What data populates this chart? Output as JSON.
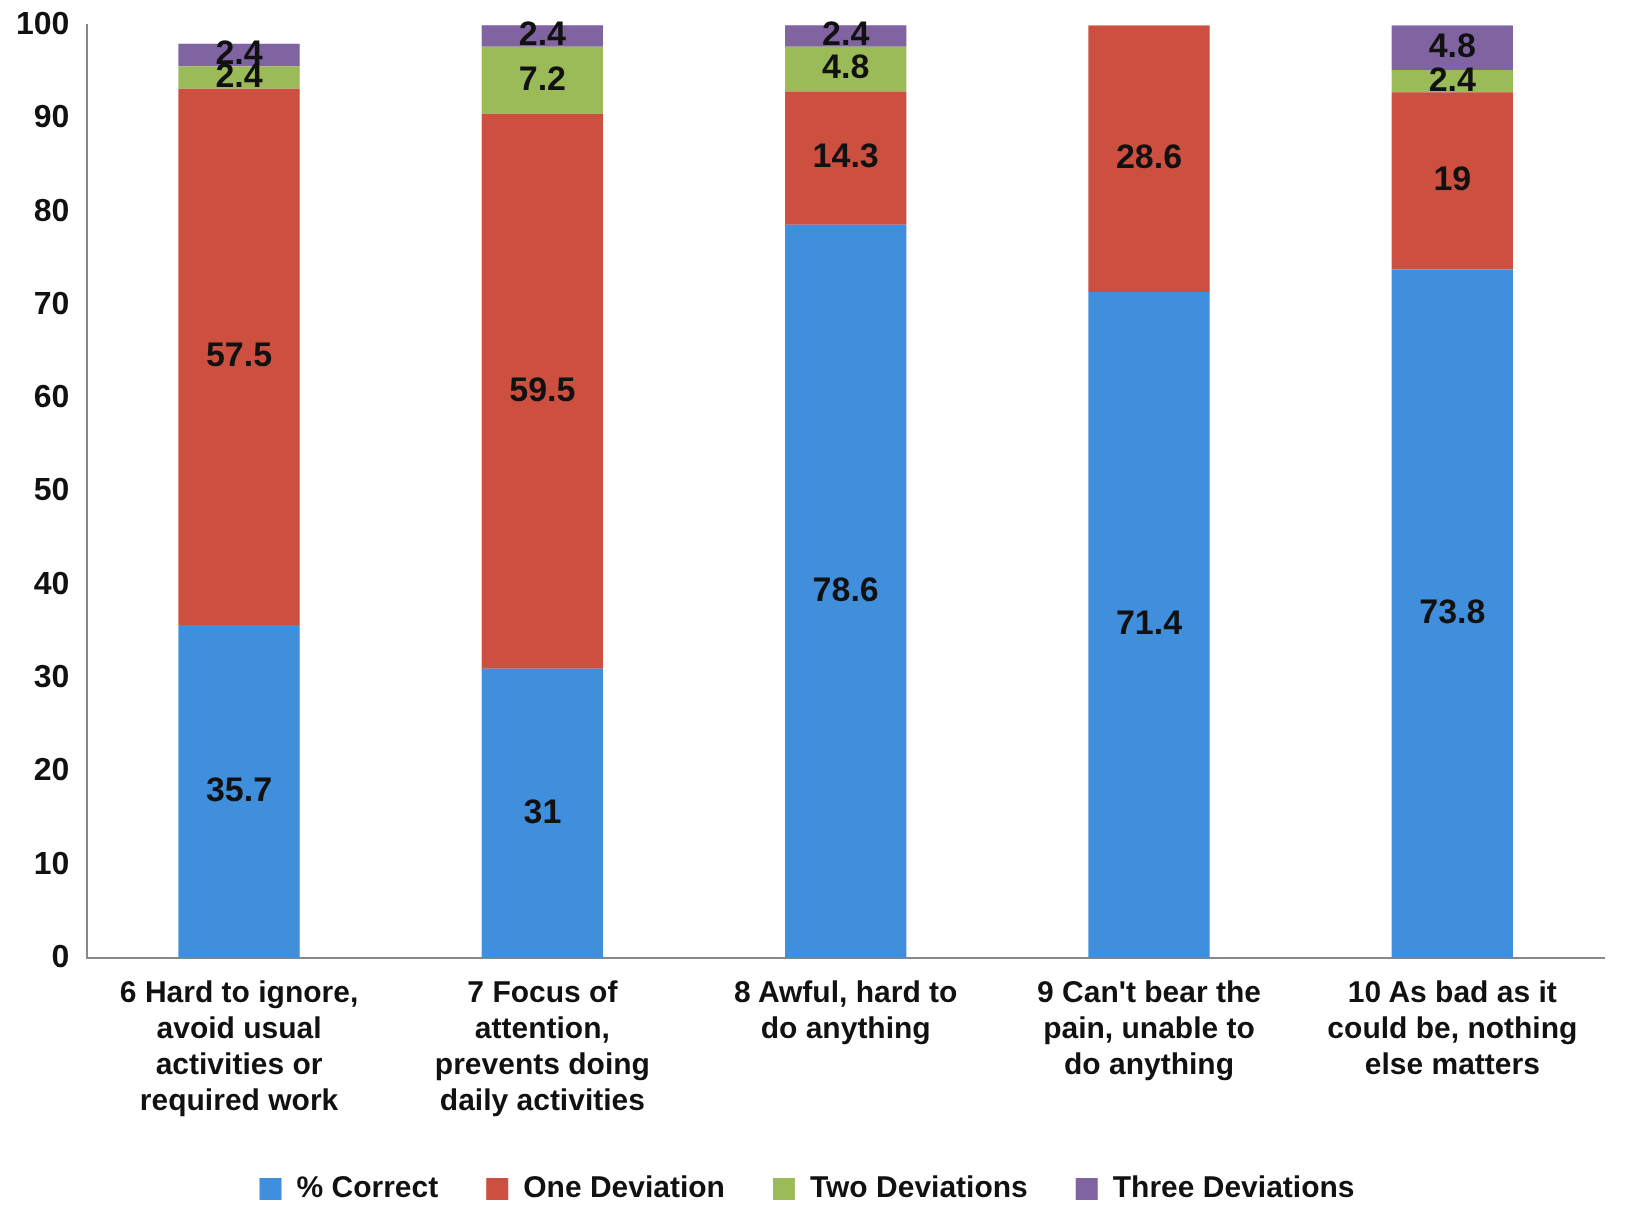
{
  "chart_data": {
    "type": "bar",
    "stacked": true,
    "categories": [
      "6 Hard to ignore, avoid usual activities or required work",
      "7 Focus of attention, prevents doing daily activities",
      "8 Awful, hard to do anything",
      "9 Can't bear the pain, unable to do anything",
      "10 As bad as it could be, nothing else matters"
    ],
    "series": [
      {
        "name": "% Correct",
        "color": "#3f8fdc",
        "values": [
          35.7,
          31,
          78.6,
          71.4,
          73.8
        ]
      },
      {
        "name": "One Deviation",
        "color": "#cd4f3f",
        "values": [
          57.5,
          59.5,
          14.3,
          28.6,
          19
        ]
      },
      {
        "name": "Two Deviations",
        "color": "#9bbb59",
        "values": [
          2.4,
          7.2,
          4.8,
          null,
          2.4
        ]
      },
      {
        "name": "Three Deviations",
        "color": "#8064a2",
        "values": [
          2.4,
          2.4,
          2.4,
          null,
          4.8
        ]
      }
    ],
    "ylim": [
      0,
      100
    ],
    "yticks": [
      0,
      10,
      20,
      30,
      40,
      50,
      60,
      70,
      80,
      90,
      100
    ],
    "grid": false,
    "legend": "bottom",
    "data_labels": true
  }
}
